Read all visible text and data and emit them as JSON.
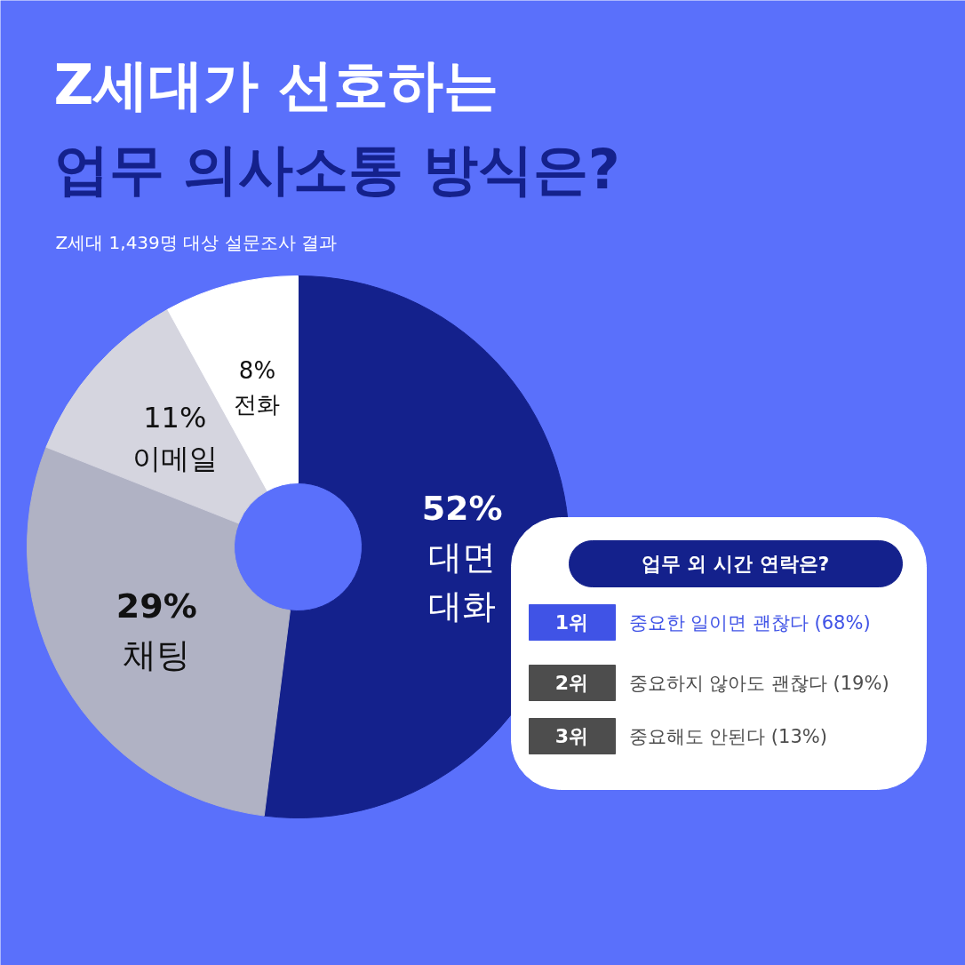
{
  "chart_data": [
    {
      "type": "donut",
      "title": "Z세대가 선호하는\n업무 의사소통 방식은?",
      "subtitle": "Z세대 1,439명 대상 설문조사 결과",
      "categories": [
        "대면 대화",
        "채팅",
        "이메일",
        "전화"
      ],
      "values": [
        52,
        29,
        11,
        8
      ],
      "value_labels": [
        "52%",
        "29%",
        "11%",
        "8%"
      ],
      "colors": [
        "#14218c",
        "#b0b2c4",
        "#d5d5df",
        "#ffffff"
      ]
    },
    {
      "type": "other",
      "title": "업무 외 시간 연락은?",
      "categories": [
        "1위",
        "2위",
        "3위"
      ],
      "annotations": [
        "중요한 일이면 괜찮다 (68%)",
        "중요하지 않아도 괜찮다 (19%)",
        "중요해도 안된다 (13%)"
      ],
      "colors": [
        "#4053e6",
        "#4d4d4d",
        "#4d4d4d"
      ]
    }
  ]
}
